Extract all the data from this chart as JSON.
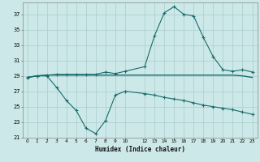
{
  "xlabel": "Humidex (Indice chaleur)",
  "bg_color": "#cce8e8",
  "grid_color": "#aacccc",
  "line_color": "#1a6b6b",
  "xlim": [
    -0.5,
    23.5
  ],
  "ylim": [
    21,
    38.5
  ],
  "yticks": [
    21,
    23,
    25,
    27,
    29,
    31,
    33,
    35,
    37
  ],
  "xticks": [
    0,
    1,
    2,
    3,
    4,
    5,
    6,
    7,
    8,
    9,
    10,
    12,
    13,
    14,
    15,
    16,
    17,
    18,
    19,
    20,
    21,
    22,
    23
  ],
  "series1_x": [
    0,
    1,
    2,
    3,
    4,
    5,
    6,
    7,
    8,
    9,
    10,
    12,
    13,
    14,
    15,
    16,
    17,
    18,
    19,
    20,
    21,
    22,
    23
  ],
  "series1_y": [
    28.8,
    29.0,
    29.1,
    29.2,
    29.2,
    29.2,
    29.2,
    29.2,
    29.5,
    29.3,
    29.6,
    30.2,
    34.2,
    37.2,
    38.0,
    37.0,
    36.8,
    34.0,
    31.5,
    29.8,
    29.6,
    29.8,
    29.5
  ],
  "series2_x": [
    0,
    1,
    2,
    3,
    4,
    5,
    6,
    7,
    8,
    9,
    10,
    11,
    12,
    13,
    14,
    15,
    16,
    17,
    18,
    19,
    20,
    21,
    22,
    23
  ],
  "series2_y": [
    28.8,
    29.0,
    29.1,
    29.1,
    29.1,
    29.1,
    29.1,
    29.1,
    29.1,
    29.1,
    29.1,
    29.1,
    29.1,
    29.1,
    29.1,
    29.1,
    29.1,
    29.1,
    29.1,
    29.1,
    29.1,
    29.1,
    29.0,
    28.8
  ],
  "series3_x": [
    0,
    1,
    2,
    3,
    4,
    5,
    6,
    7,
    8,
    9,
    10,
    12,
    13,
    14,
    15,
    16,
    17,
    18,
    19,
    20,
    21,
    22,
    23
  ],
  "series3_y": [
    28.8,
    29.0,
    29.0,
    27.5,
    25.8,
    24.5,
    22.2,
    21.5,
    23.2,
    26.5,
    27.0,
    26.7,
    26.5,
    26.2,
    26.0,
    25.8,
    25.5,
    25.2,
    25.0,
    24.8,
    24.6,
    24.3,
    24.0
  ]
}
